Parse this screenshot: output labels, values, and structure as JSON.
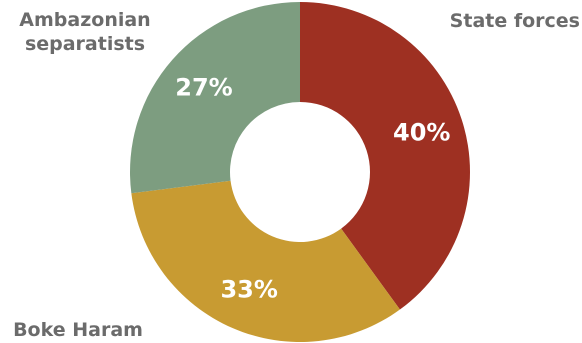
{
  "chart_data": {
    "type": "pie",
    "donut": true,
    "title": "",
    "categories": [
      "State forces",
      "Boke Haram",
      "Ambazonian separatists"
    ],
    "values": [
      40,
      33,
      27
    ],
    "value_labels": [
      "40%",
      "33%",
      "27%"
    ],
    "colors": [
      "#9e3022",
      "#c89b32",
      "#7d9d80"
    ],
    "legend": "none"
  }
}
